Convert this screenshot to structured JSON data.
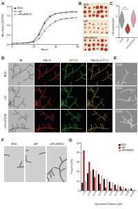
{
  "panel_labels": [
    "A",
    "B",
    "C",
    "D",
    "E",
    "F",
    "G"
  ],
  "chart_data": [
    {
      "type": "line",
      "x_label": "Hours",
      "y_label": "Absorbance (OD600)",
      "x": [
        0,
        5,
        10,
        15,
        20,
        25,
        30,
        35,
        40,
        45,
        50,
        55,
        60
      ],
      "series": [
        {
          "name": "M145",
          "color": "#000000",
          "marker": "circle",
          "values": [
            0.05,
            0.05,
            0.06,
            0.08,
            0.15,
            0.5,
            1.1,
            1.45,
            1.6,
            1.65,
            1.68,
            1.7,
            1.7
          ]
        },
        {
          "name": "cdtP",
          "color": "#555555",
          "marker": "square",
          "values": [
            0.05,
            0.05,
            0.05,
            0.06,
            0.1,
            0.3,
            0.7,
            1.0,
            1.2,
            1.3,
            1.35,
            1.38,
            1.4
          ]
        },
        {
          "name": "cdtP/cdtPΔZ10",
          "color": "#999999",
          "marker": "triangle",
          "values": [
            0.05,
            0.05,
            0.06,
            0.09,
            0.18,
            0.6,
            1.2,
            1.5,
            1.62,
            1.66,
            1.7,
            1.72,
            1.72
          ]
        }
      ],
      "xlim": [
        0,
        60
      ],
      "xticks": [
        0,
        20,
        40,
        60
      ],
      "ylim": [
        0,
        2
      ],
      "yticks": [
        {
          "value": 0,
          "label": "0.0"
        },
        {
          "value": 0.5,
          "label": "0.5"
        },
        {
          "value": 1,
          "label": "1.0"
        },
        {
          "value": 1.5,
          "label": "1.5"
        },
        {
          "value": 2,
          "label": "2.0"
        }
      ],
      "legend": "top-left"
    },
    {
      "type": "violin",
      "y_label": "Colony area (mm²)",
      "categories": [
        "M145",
        "cdtP",
        "cdtP/cdtPΔZ10"
      ],
      "min": [
        0.8,
        0.3,
        0.9
      ],
      "median": [
        1.6,
        0.7,
        1.7
      ],
      "max": [
        2.5,
        1.3,
        2.6
      ],
      "colors": [
        "#9e9e9e",
        "#c0392b",
        "#e8a0a0"
      ],
      "ylim": [
        0,
        3
      ],
      "yticks": [
        0,
        1,
        2,
        3
      ],
      "annotation": "***"
    },
    {
      "type": "bar",
      "x_label": "Tip-to-branch distance (μm)",
      "y_label": "Frequency (%)",
      "categories": [
        "0-10",
        "10-20",
        "20-30",
        "30-40",
        "40-50",
        "50-60",
        "60-70",
        "70-80",
        "80-90",
        "90-100"
      ],
      "series": [
        {
          "name": "M145",
          "color": "#000000",
          "values": [
            8,
            18,
            22,
            17,
            12,
            9,
            6,
            4,
            2,
            2
          ]
        },
        {
          "name": "cdtP",
          "color": "#8b1a1a",
          "values": [
            42,
            30,
            14,
            7,
            3,
            2,
            1,
            1,
            0,
            0
          ]
        },
        {
          "name": "cdtP/cdtPΔZ10",
          "color": "#e8a0a0",
          "values": [
            10,
            20,
            21,
            16,
            12,
            8,
            6,
            4,
            2,
            1
          ]
        }
      ],
      "ylim": [
        0,
        50
      ],
      "yticks": [
        0,
        10,
        20,
        30,
        40,
        50
      ],
      "legend": "top-right"
    }
  ],
  "images": {
    "B": {
      "labels": [
        "M145",
        "cdtP",
        "cdtP/cdtPΔZ10"
      ]
    },
    "D": {
      "columns": [
        "BF",
        "FM5-95",
        "SYTO-9",
        "FM5-95+SYTO-9"
      ],
      "rows": [
        "M145",
        "cdtP",
        "cdtP/cdtPΔZ10"
      ]
    },
    "E": {
      "times": [
        "12:40",
        "14:20",
        "15:00"
      ]
    },
    "F": {
      "labels": [
        "M145",
        "cdtP",
        "cdtP/cdtPΔZ10"
      ]
    }
  }
}
